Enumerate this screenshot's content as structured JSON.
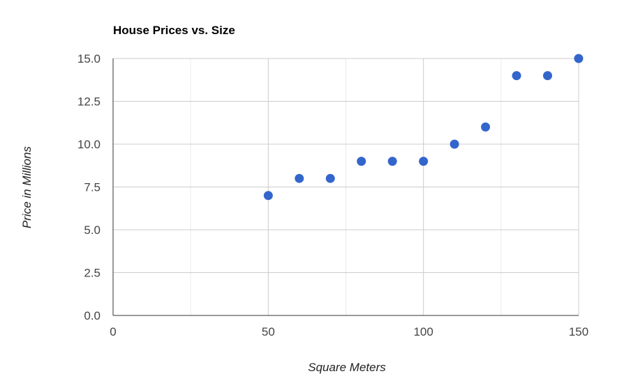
{
  "chart_data": {
    "type": "scatter",
    "title": "House Prices vs. Size",
    "xlabel": "Square Meters",
    "ylabel": "Price in Millions",
    "xlim": [
      0,
      150
    ],
    "ylim": [
      0,
      15
    ],
    "x_ticks": [
      "0",
      "50",
      "100",
      "150"
    ],
    "x_tick_values": [
      0,
      50,
      100,
      150
    ],
    "x_minor_grid_values": [
      25,
      75,
      125
    ],
    "y_ticks": [
      "0.0",
      "2.5",
      "5.0",
      "7.5",
      "10.0",
      "12.5",
      "15.0"
    ],
    "y_tick_values": [
      0,
      2.5,
      5,
      7.5,
      10,
      12.5,
      15
    ],
    "grid": true,
    "legend": "none",
    "point_color": "#3366cc",
    "series": [
      {
        "x": [
          50,
          60,
          70,
          80,
          90,
          100,
          110,
          120,
          130,
          140,
          150
        ],
        "y": [
          7,
          8,
          8,
          9,
          9,
          9,
          10,
          11,
          14,
          14,
          15
        ]
      }
    ]
  }
}
